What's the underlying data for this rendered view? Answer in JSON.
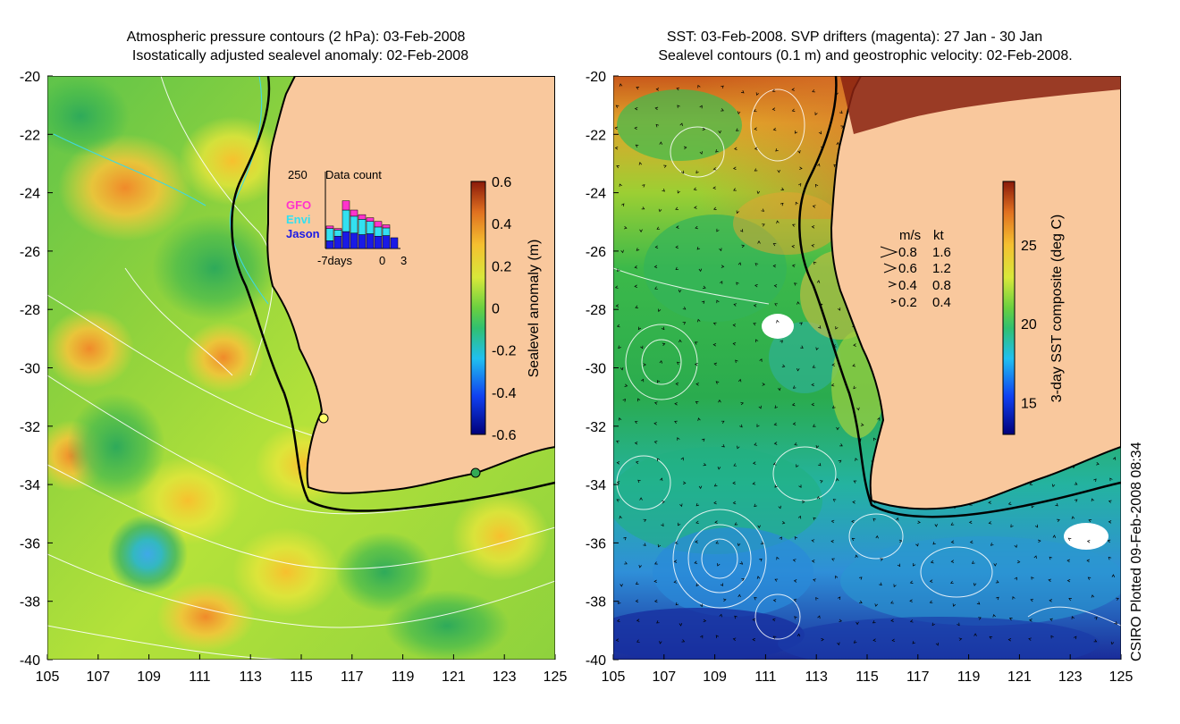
{
  "chart_data": [
    {
      "type": "heatmap",
      "panel": "left",
      "title_lines": [
        "Atmospheric pressure contours (2 hPa): 03-Feb-2008",
        "Isostatically adjusted sealevel anomaly: 02-Feb-2008"
      ],
      "xlim": [
        105,
        125
      ],
      "ylim": [
        -40,
        -20
      ],
      "x_ticks": [
        "105",
        "107",
        "109",
        "111",
        "113",
        "115",
        "117",
        "119",
        "121",
        "123",
        "125"
      ],
      "y_ticks": [
        "-20",
        "-22",
        "-24",
        "-26",
        "-28",
        "-30",
        "-32",
        "-34",
        "-36",
        "-38",
        "-40"
      ],
      "colorbar": {
        "label": "Sealevel anomaly (m)",
        "range": [
          -0.6,
          0.6
        ],
        "ticks": [
          "0.6",
          "0.4",
          "0.2",
          "0",
          "-0.2",
          "-0.4",
          "-0.6"
        ]
      },
      "inset": {
        "title": "Data count",
        "ymax_label": "250",
        "x_labels": [
          "-7days",
          "0",
          "3"
        ],
        "legend": [
          {
            "name": "GFO",
            "color": "#ff33cc"
          },
          {
            "name": "Envi",
            "color": "#33e0f0"
          },
          {
            "name": "Jason",
            "color": "#1a1ae6"
          }
        ],
        "bars": [
          {
            "jason": 25,
            "envi": 40,
            "gfo": 8
          },
          {
            "jason": 40,
            "envi": 20,
            "gfo": 5
          },
          {
            "jason": 55,
            "envi": 70,
            "gfo": 30
          },
          {
            "jason": 50,
            "envi": 55,
            "gfo": 20
          },
          {
            "jason": 45,
            "envi": 50,
            "gfo": 15
          },
          {
            "jason": 48,
            "envi": 40,
            "gfo": 12
          },
          {
            "jason": 40,
            "envi": 30,
            "gfo": 18
          },
          {
            "jason": 42,
            "envi": 25,
            "gfo": 10
          },
          {
            "jason": 35,
            "envi": 0,
            "gfo": 0
          }
        ]
      },
      "markers": [
        {
          "lon": 115.9,
          "lat": -31.9,
          "color": "#ffff66"
        },
        {
          "lon": 121.9,
          "lat": -33.6,
          "color": "#33aa55"
        }
      ]
    },
    {
      "type": "heatmap",
      "panel": "right",
      "title_lines": [
        "SST: 03-Feb-2008. SVP drifters (magenta): 27 Jan - 30 Jan",
        "Sealevel contours (0.1 m) and geostrophic velocity: 02-Feb-2008."
      ],
      "xlim": [
        105,
        125
      ],
      "ylim": [
        -40,
        -20
      ],
      "x_ticks": [
        "105",
        "107",
        "109",
        "111",
        "113",
        "115",
        "117",
        "119",
        "121",
        "123",
        "125"
      ],
      "y_ticks": [
        "-20",
        "-22",
        "-24",
        "-26",
        "-28",
        "-30",
        "-32",
        "-34",
        "-36",
        "-38",
        "-40"
      ],
      "colorbar": {
        "label": "3-day SST composite (deg C)",
        "range": [
          13,
          29
        ],
        "ticks": [
          "25",
          "20",
          "15"
        ]
      },
      "velocity_legend": {
        "headers": [
          "m/s",
          "kt"
        ],
        "rows": [
          {
            "ms": "0.8",
            "kt": "1.6"
          },
          {
            "ms": "0.6",
            "kt": "1.2"
          },
          {
            "ms": "0.4",
            "kt": "0.8"
          },
          {
            "ms": "0.2",
            "kt": "0.4"
          }
        ]
      }
    }
  ],
  "credit": "CSIRO Plotted 09-Feb-2008 08:34",
  "colors": {
    "land": "#f9c89d",
    "coast": "#000000",
    "contour_white": "#ffffff",
    "contour_cyan": "#40d8e0"
  }
}
